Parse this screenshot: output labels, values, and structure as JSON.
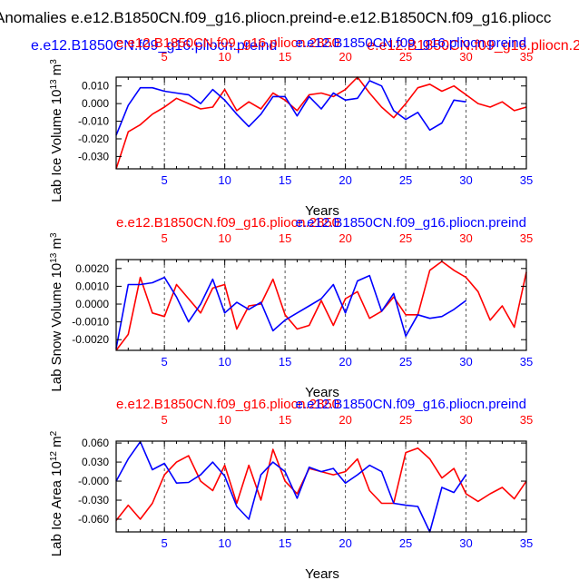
{
  "figure": {
    "main_title": "Anomalies e.e12.B1850CN.f09_g16.pliocn.preind-e.e12.B1850CN.f09_g16.pliocc",
    "subtitle_left": "e.e12.B1850CN.f09_g16.pliocn.preind",
    "subtitle_right": "e.e12.B1850CN.f09_g16.pliocn.2"
  },
  "colors": {
    "blue": "#0000ff",
    "red": "#ff0000",
    "axis": "#000000",
    "grid": "#555555"
  },
  "chart_data": [
    {
      "type": "line",
      "top_labels": {
        "red": "e.e12.B1850CN.f09_g16.pliocn.2850",
        "blue": "e.e12.B1850CN.f09_g16.pliocn.preind"
      },
      "ylabel": "Lab Ice Volume 10^13 m^3",
      "ylabel_parts": {
        "main": "Lab Ice Volume 10",
        "exp1": "13",
        "unit": " m",
        "exp2": "3"
      },
      "xlabel": "Years",
      "xlim": [
        1,
        35
      ],
      "ylim": [
        -0.037,
        0.015
      ],
      "yticks": [
        0.01,
        0.0,
        -0.01,
        -0.02,
        -0.03
      ],
      "ytick_labels": [
        "0.010",
        "0.000",
        "-0.010",
        "-0.020",
        "-0.030"
      ],
      "xticks": [
        5,
        10,
        15,
        20,
        25,
        30,
        35
      ],
      "xtick_labels": [
        "5",
        "10",
        "15",
        "20",
        "25",
        "30",
        "35"
      ],
      "gridlines_x": [
        5,
        10,
        15,
        20,
        25,
        30
      ],
      "series": [
        {
          "name": "e.e12.B1850CN.f09_g16.pliocn.2850",
          "color": "red",
          "x": [
            1,
            2,
            3,
            4,
            5,
            6,
            7,
            8,
            9,
            10,
            11,
            12,
            13,
            14,
            15,
            16,
            17,
            18,
            19,
            20,
            21,
            22,
            23,
            24,
            25,
            26,
            27,
            28,
            29,
            30,
            31,
            32,
            33,
            34,
            35
          ],
          "values": [
            -0.037,
            -0.016,
            -0.012,
            -0.006,
            -0.002,
            0.003,
            0.0,
            -0.003,
            -0.002,
            0.008,
            -0.004,
            0.001,
            -0.003,
            0.006,
            0.002,
            -0.004,
            0.005,
            0.006,
            0.004,
            0.008,
            0.015,
            0.006,
            -0.002,
            -0.008,
            0.0,
            0.009,
            0.011,
            0.007,
            0.01,
            0.005,
            0.0,
            -0.002,
            0.001,
            -0.004,
            -0.002
          ]
        },
        {
          "name": "e.e12.B1850CN.f09_g16.pliocn.preind",
          "color": "blue",
          "x": [
            1,
            2,
            3,
            4,
            5,
            6,
            7,
            8,
            9,
            10,
            11,
            12,
            13,
            14,
            15,
            16,
            17,
            18,
            19,
            20,
            21,
            22,
            23,
            24,
            25,
            26,
            27,
            28,
            29,
            30
          ],
          "values": [
            -0.018,
            -0.001,
            0.009,
            0.009,
            0.007,
            0.006,
            0.005,
            0.0,
            0.008,
            0.002,
            -0.006,
            -0.013,
            -0.006,
            0.004,
            0.004,
            -0.007,
            0.004,
            -0.003,
            0.006,
            0.002,
            0.003,
            0.013,
            0.01,
            -0.004,
            -0.009,
            -0.005,
            -0.015,
            -0.011,
            0.002,
            0.001
          ]
        }
      ]
    },
    {
      "type": "line",
      "top_labels": {
        "red": "e.e12.B1850CN.f09_g16.pliocn.2850",
        "blue": "e.e12.B1850CN.f09_g16.pliocn.preind"
      },
      "ylabel": "Lab Snow Volume 10^13 m^3",
      "ylabel_parts": {
        "main": "Lab Snow Volume 10",
        "exp1": "13",
        "unit": " m",
        "exp2": "3"
      },
      "xlabel": "Years",
      "xlim": [
        1,
        35
      ],
      "ylim": [
        -0.0026,
        0.0025
      ],
      "yticks": [
        0.002,
        0.001,
        0.0,
        -0.001,
        -0.002
      ],
      "ytick_labels": [
        "0.0020",
        "0.0010",
        "0.0000",
        "-0.0010",
        "-0.0020"
      ],
      "xticks": [
        5,
        10,
        15,
        20,
        25,
        30,
        35
      ],
      "xtick_labels": [
        "5",
        "10",
        "15",
        "20",
        "25",
        "30",
        "35"
      ],
      "gridlines_x": [
        5,
        10,
        15,
        20,
        25,
        30
      ],
      "series": [
        {
          "name": "e.e12.B1850CN.f09_g16.pliocn.2850",
          "color": "red",
          "x": [
            1,
            2,
            3,
            4,
            5,
            6,
            7,
            8,
            9,
            10,
            11,
            12,
            13,
            14,
            15,
            16,
            17,
            18,
            19,
            20,
            21,
            22,
            23,
            24,
            25,
            26,
            27,
            28,
            29,
            30,
            31,
            32,
            33,
            34,
            35
          ],
          "values": [
            -0.0026,
            -0.0017,
            0.0015,
            -0.0005,
            -0.0007,
            0.0011,
            0.0003,
            -0.0005,
            0.0009,
            0.0011,
            -0.0014,
            -0.0001,
            0.0,
            0.0014,
            -0.0006,
            -0.0014,
            -0.0012,
            0.0002,
            -0.0012,
            0.0003,
            0.0007,
            -0.0008,
            -0.0004,
            0.0004,
            -0.0006,
            -0.0006,
            0.0019,
            0.0024,
            0.0019,
            0.0015,
            0.0007,
            -0.0009,
            -0.0001,
            -0.0013,
            0.0018
          ]
        },
        {
          "name": "e.e12.B1850CN.f09_g16.pliocn.preind",
          "color": "blue",
          "x": [
            1,
            2,
            3,
            4,
            5,
            6,
            7,
            8,
            9,
            10,
            11,
            12,
            13,
            14,
            15,
            16,
            17,
            18,
            19,
            20,
            21,
            22,
            23,
            24,
            25,
            26,
            27,
            28,
            29,
            30
          ],
          "values": [
            -0.0025,
            0.0011,
            0.0011,
            0.0012,
            0.0015,
            0.0004,
            -0.001,
            0.0,
            0.0014,
            -0.0005,
            0.0001,
            -0.0003,
            0.0001,
            -0.0015,
            -0.0009,
            -0.0005,
            -0.0001,
            0.0003,
            0.0011,
            -0.0005,
            0.0013,
            0.0016,
            -0.0004,
            0.0006,
            -0.0018,
            -0.0006,
            -0.0008,
            -0.0007,
            -0.0003,
            0.0002
          ]
        }
      ]
    },
    {
      "type": "line",
      "top_labels": {
        "red": "e.e12.B1850CN.f09_g16.pliocn.2850",
        "blue": "e.e12.B1850CN.f09_g16.pliocn.preind"
      },
      "ylabel": "Lab Ice Area 10^12 m^2",
      "ylabel_parts": {
        "main": "Lab Ice Area 10",
        "exp1": "12",
        "unit": " m",
        "exp2": "2"
      },
      "xlabel": "Years",
      "xlim": [
        1,
        35
      ],
      "ylim": [
        -0.08,
        0.063
      ],
      "yticks": [
        0.06,
        0.03,
        0.0,
        -0.03,
        -0.06
      ],
      "ytick_labels": [
        "0.060",
        "0.030",
        "-0.000",
        "-0.030",
        "-0.060"
      ],
      "xticks": [
        5,
        10,
        15,
        20,
        25,
        30,
        35
      ],
      "xtick_labels": [
        "5",
        "10",
        "15",
        "20",
        "25",
        "30",
        "35"
      ],
      "gridlines_x": [
        5,
        10,
        15,
        20,
        25,
        30
      ],
      "series": [
        {
          "name": "e.e12.B1850CN.f09_g16.pliocn.2850",
          "color": "red",
          "x": [
            1,
            2,
            3,
            4,
            5,
            6,
            7,
            8,
            9,
            10,
            11,
            12,
            13,
            14,
            15,
            16,
            17,
            18,
            19,
            20,
            21,
            22,
            23,
            24,
            25,
            26,
            27,
            28,
            29,
            30,
            31,
            32,
            33,
            34,
            35
          ],
          "values": [
            -0.062,
            -0.038,
            -0.06,
            -0.035,
            0.01,
            0.03,
            0.04,
            0.0,
            -0.015,
            0.025,
            -0.035,
            0.025,
            -0.03,
            0.05,
            0.0,
            -0.02,
            0.02,
            0.015,
            0.01,
            0.015,
            0.035,
            -0.015,
            -0.035,
            -0.035,
            0.045,
            0.052,
            0.035,
            0.005,
            0.02,
            -0.02,
            -0.032,
            -0.02,
            -0.01,
            -0.028,
            0.0
          ]
        },
        {
          "name": "e.e12.B1850CN.f09_g16.pliocn.preind",
          "color": "blue",
          "x": [
            1,
            2,
            3,
            4,
            5,
            6,
            7,
            8,
            9,
            10,
            11,
            12,
            13,
            14,
            15,
            16,
            17,
            18,
            19,
            20,
            21,
            22,
            23,
            24,
            25,
            26,
            27,
            28,
            29,
            30
          ],
          "values": [
            0.0,
            0.035,
            0.062,
            0.018,
            0.028,
            -0.003,
            -0.002,
            0.01,
            0.03,
            0.008,
            -0.04,
            -0.06,
            0.01,
            0.03,
            0.015,
            -0.027,
            0.022,
            0.015,
            0.02,
            -0.003,
            0.01,
            0.025,
            0.015,
            -0.035,
            -0.038,
            -0.04,
            -0.08,
            -0.01,
            -0.018,
            0.01
          ]
        }
      ]
    }
  ]
}
